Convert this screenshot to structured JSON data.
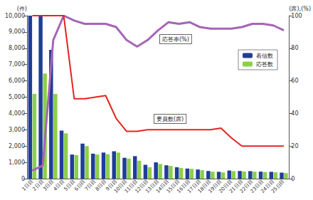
{
  "chart_data": {
    "type": "bar",
    "categories": [
      "1日目",
      "2日目",
      "3日目",
      "4日目",
      "5日目",
      "6日目",
      "7日目",
      "8日目",
      "9日目",
      "10日目",
      "11日目",
      "12日目",
      "13日目",
      "14日目",
      "15日目",
      "16日目",
      "17日目",
      "18日目",
      "19日目",
      "20日目",
      "21日目",
      "22日目",
      "23日目",
      "24日目",
      "25日目"
    ],
    "series": [
      {
        "name": "着信数",
        "type": "bar",
        "color": "#1f3d99",
        "values": [
          10000,
          10000,
          7900,
          2950,
          1480,
          2150,
          1530,
          1600,
          1680,
          1280,
          1380,
          850,
          1000,
          820,
          700,
          620,
          560,
          470,
          420,
          500,
          470,
          460,
          430,
          420,
          370
        ]
      },
      {
        "name": "応答数",
        "type": "bar",
        "color": "#8ccf4a",
        "values": [
          5200,
          6450,
          5200,
          2780,
          1450,
          2000,
          1480,
          1500,
          1600,
          1230,
          1100,
          700,
          900,
          780,
          650,
          600,
          520,
          430,
          380,
          460,
          440,
          430,
          410,
          390,
          340
        ]
      },
      {
        "name": "応答率(%)",
        "type": "line",
        "color": "#a565b5",
        "axis": "y2",
        "values": [
          5,
          8,
          85,
          100,
          97,
          95,
          95,
          95,
          93,
          85,
          81,
          85,
          91,
          96,
          95,
          96,
          93,
          92,
          92,
          92,
          93,
          95,
          95,
          94,
          91
        ]
      },
      {
        "name": "要員数(席)",
        "type": "line",
        "color": "#e8231f",
        "axis": "y2",
        "values": [
          100,
          100,
          100,
          100,
          49,
          49,
          50,
          51,
          37,
          29,
          29,
          30,
          30,
          30,
          30,
          30,
          30,
          30,
          31,
          25,
          20,
          20,
          20,
          20,
          20
        ]
      }
    ],
    "ylabel": "(件)",
    "y2label": "(席),(%)",
    "ylim": [
      0,
      10000
    ],
    "yticks": [
      0,
      {
        "value": 1000,
        "label": "1,000"
      },
      {
        "value": 2000,
        "label": "2,000"
      },
      {
        "value": 3000,
        "label": "3,000"
      },
      {
        "value": 4000,
        "label": "4,000"
      },
      {
        "value": 5000,
        "label": "5,000"
      },
      {
        "value": 6000,
        "label": "6,000"
      },
      {
        "value": 7000,
        "label": "7,000"
      },
      {
        "value": 8000,
        "label": "8,000"
      },
      {
        "value": 9000,
        "label": "9,000"
      },
      {
        "value": 10000,
        "label": "10,000"
      }
    ],
    "y2lim": [
      0,
      100
    ],
    "y2ticks": [
      0,
      20,
      40,
      60,
      80,
      100
    ],
    "grid": false,
    "legend": "right"
  }
}
